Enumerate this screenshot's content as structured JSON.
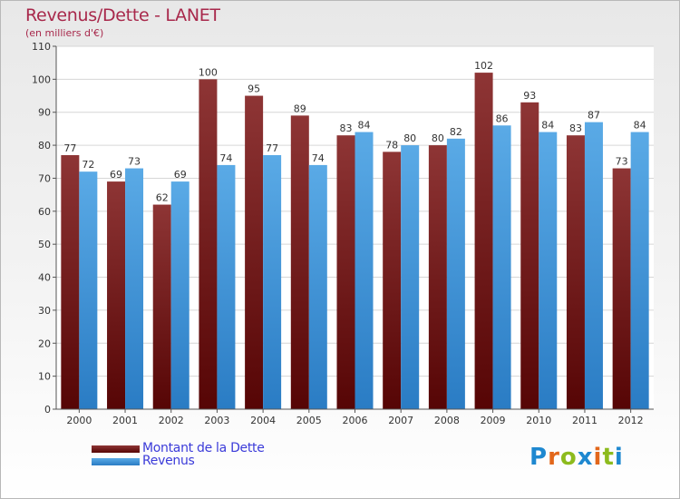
{
  "title": "Revenus/Dette - LANET",
  "subtitle": "(en milliers d'€)",
  "logo_text": "Proxiti",
  "logo_colors": [
    "#1e88d0",
    "#e2671b",
    "#8dbb1e",
    "#1e88d0",
    "#e2671b",
    "#8dbb1e",
    "#1e88d0"
  ],
  "colors": {
    "title": "#a8284b",
    "dette": "#7a1a1a",
    "revenus": "#3d8fd6",
    "legend_text": "#3b3bd9"
  },
  "chart_data": {
    "type": "bar",
    "categories": [
      "2000",
      "2001",
      "2002",
      "2003",
      "2004",
      "2005",
      "2006",
      "2007",
      "2008",
      "2009",
      "2010",
      "2011",
      "2012"
    ],
    "series": [
      {
        "name": "Montant de la Dette",
        "values": [
          77,
          69,
          62,
          100,
          95,
          89,
          83,
          78,
          80,
          102,
          93,
          83,
          73
        ],
        "color": "#7a1a1a"
      },
      {
        "name": "Revenus",
        "values": [
          72,
          73,
          69,
          74,
          77,
          74,
          84,
          80,
          82,
          86,
          84,
          87,
          84
        ],
        "color": "#3d8fd6"
      }
    ],
    "title": "Revenus/Dette - LANET",
    "subtitle": "(en milliers d'€)",
    "ylim": [
      0,
      110
    ],
    "yticks": [
      0,
      10,
      20,
      30,
      40,
      50,
      60,
      70,
      80,
      90,
      100,
      110
    ],
    "grid": true,
    "legend_position": "bottom-left"
  }
}
